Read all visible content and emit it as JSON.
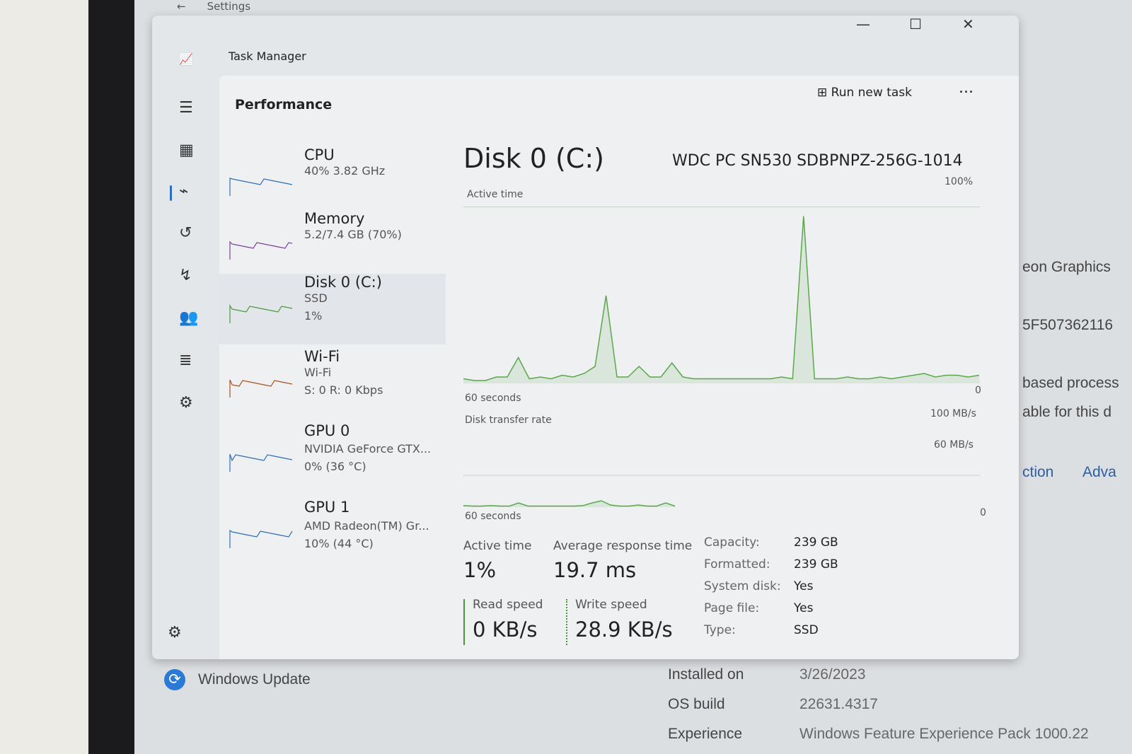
{
  "settings": {
    "back_icon": "arrow-left-icon",
    "title": "Settings"
  },
  "background_fragments": [
    "eon Graphics",
    "5F507362116",
    "based process",
    "able for this d",
    "ction",
    "Adva"
  ],
  "windows_update": {
    "label": "Windows Update",
    "rows": [
      {
        "k": "Installed on",
        "v": "3/26/2023"
      },
      {
        "k": "OS build",
        "v": "22631.4317"
      },
      {
        "k": "Experience",
        "v": "Windows Feature Experience Pack 1000.22"
      }
    ]
  },
  "task_manager": {
    "title": "Task Manager",
    "section": "Performance",
    "run_new_task": "Run new task",
    "more": "...",
    "sidebar": [
      {
        "name": "CPU",
        "lines": [
          "40%  3.82 GHz"
        ],
        "color": "#2f6fb3"
      },
      {
        "name": "Memory",
        "lines": [
          "5.2/7.4 GB (70%)"
        ],
        "color": "#7d3f9a"
      },
      {
        "name": "Disk 0 (C:)",
        "lines": [
          "SSD",
          "1%"
        ],
        "color": "#4a9a3a"
      },
      {
        "name": "Wi-Fi",
        "lines": [
          "Wi-Fi",
          "S: 0 R: 0 Kbps"
        ],
        "color": "#a8531d"
      },
      {
        "name": "GPU 0",
        "lines": [
          "NVIDIA GeForce GTX...",
          "0%  (36 °C)"
        ],
        "color": "#2f6fb3"
      },
      {
        "name": "GPU 1",
        "lines": [
          "AMD Radeon(TM) Gr...",
          "10%  (44 °C)"
        ],
        "color": "#2f6fb3"
      }
    ],
    "disk": {
      "title": "Disk 0 (C:)",
      "model": "WDC PC SN530 SDBPNPZ-256G-1014",
      "active_time_label": "Active time",
      "active_max": "100%",
      "active_min": "0",
      "time_span": "60 seconds",
      "active_history": [
        3,
        2,
        2,
        4,
        4,
        15,
        3,
        4,
        3,
        5,
        4,
        6,
        10,
        50,
        4,
        4,
        10,
        4,
        4,
        12,
        4,
        3,
        3,
        3,
        3,
        3,
        3,
        3,
        3,
        4,
        3,
        95,
        3,
        3,
        3,
        4,
        3,
        3,
        4,
        3,
        4,
        5,
        6,
        4,
        5,
        5,
        4,
        5
      ],
      "transfer_label": "Disk transfer rate",
      "transfer_max": "100 MB/s",
      "transfer_line": "60 MB/s",
      "transfer_min": "0",
      "transfer_history": [
        3,
        2,
        2,
        3,
        2,
        2,
        8,
        2,
        2,
        2,
        2,
        2,
        2,
        3,
        8,
        12,
        4,
        2,
        2,
        4,
        2,
        2,
        8,
        2
      ],
      "stats": {
        "active_time_label": "Active time",
        "active_time": "1%",
        "avg_resp_label": "Average response time",
        "avg_resp": "19.7 ms",
        "read_label": "Read speed",
        "read": "0 KB/s",
        "write_label": "Write speed",
        "write": "28.9 KB/s"
      },
      "props": [
        {
          "k": "Capacity:",
          "v": "239 GB"
        },
        {
          "k": "Formatted:",
          "v": "239 GB"
        },
        {
          "k": "System disk:",
          "v": "Yes"
        },
        {
          "k": "Page file:",
          "v": "Yes"
        },
        {
          "k": "Type:",
          "v": "SSD"
        }
      ]
    }
  }
}
